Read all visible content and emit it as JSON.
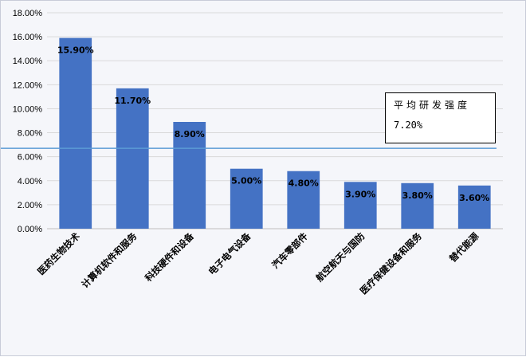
{
  "chart_data": {
    "type": "bar",
    "categories": [
      "医药生物技术",
      "计算机软件和服务",
      "科技硬件和设备",
      "电子电气设备",
      "汽车零部件",
      "航空航天与国防",
      "医疗保健设备和服务",
      "替代能源"
    ],
    "values": [
      15.9,
      11.7,
      8.9,
      5.0,
      4.8,
      3.9,
      3.8,
      3.6
    ],
    "value_labels": [
      "15.90%",
      "11.70%",
      "8.90%",
      "5.00%",
      "4.80%",
      "3.90%",
      "3.80%",
      "3.60%"
    ],
    "yticks": [
      "0.00%",
      "2.00%",
      "4.00%",
      "6.00%",
      "8.00%",
      "10.00%",
      "12.00%",
      "14.00%",
      "16.00%",
      "18.00%"
    ],
    "ylim": [
      0,
      18
    ],
    "reference_line": {
      "value": 6.7
    },
    "grid": true,
    "bar_color": "#4472c4",
    "line_color": "#5b9bd5"
  },
  "annotation": {
    "title": "平均研发强度",
    "value": "7.20%"
  }
}
